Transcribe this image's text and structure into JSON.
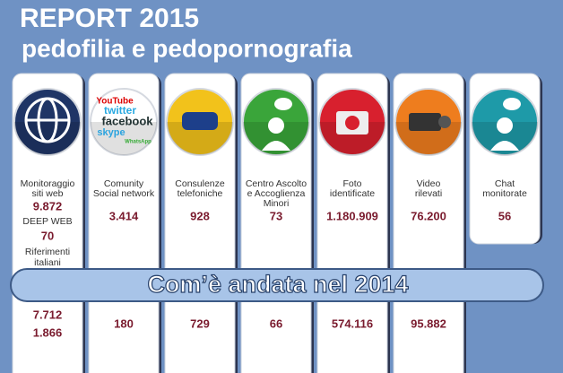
{
  "header": {
    "title": "REPORT 2015",
    "subtitle": "pedofilia e pedopornografia"
  },
  "banner": "Com’è andata nel 2014",
  "columns": [
    {
      "color": "#1f3566",
      "label": [
        "Monitoraggio",
        "siti web"
      ],
      "value": "9.872",
      "extra": [
        "DEEP WEB",
        "70",
        "Riferimenti",
        "italiani"
      ],
      "value_2014": [
        "7.712",
        "1.866"
      ]
    },
    {
      "color": "#ffffff",
      "icon_text": [
        "YouTube",
        "twitter",
        "facebook",
        "skype",
        "WhatsApp"
      ],
      "label": [
        "Comunity",
        "Social network"
      ],
      "value": "3.414",
      "value_2014": [
        "180"
      ]
    },
    {
      "color": "#f2c21b",
      "label": [
        "Consulenze",
        "telefoniche"
      ],
      "value": "928",
      "value_2014": [
        "729"
      ]
    },
    {
      "color": "#3aa53a",
      "label": [
        "Centro Ascolto",
        "e Accoglienza",
        "Minori"
      ],
      "value": "73",
      "value_2014": [
        "66"
      ]
    },
    {
      "color": "#d8202e",
      "label": [
        "Foto",
        "identificate"
      ],
      "value": "1.180.909",
      "value_2014": [
        "574.116"
      ]
    },
    {
      "color": "#ee7d1e",
      "label": [
        "Video",
        "rilevati"
      ],
      "value": "76.200",
      "value_2014": [
        "95.882"
      ]
    },
    {
      "color": "#1e9aa8",
      "label": [
        "Chat",
        "monitorate"
      ],
      "value": "56",
      "value_2014": []
    }
  ]
}
